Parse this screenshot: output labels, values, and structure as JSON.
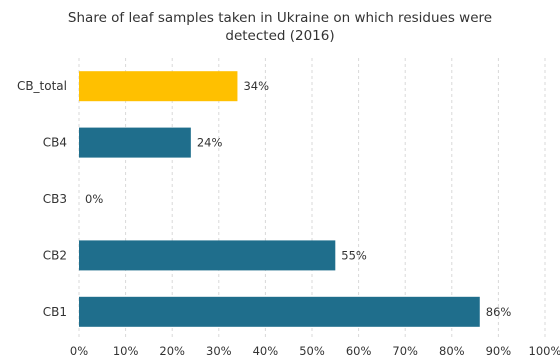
{
  "chart_data": {
    "type": "bar",
    "orientation": "horizontal",
    "title": "Share of leaf samples taken in Ukraine on which residues were detected (2016)",
    "title_lines": [
      "Share of leaf samples taken in Ukraine on which residues were",
      "detected (2016)"
    ],
    "categories": [
      "CB_total",
      "CB4",
      "CB3",
      "CB2",
      "CB1"
    ],
    "values": [
      34,
      24,
      0,
      55,
      86
    ],
    "data_labels": [
      "34%",
      "24%",
      "0%",
      "55%",
      "86%"
    ],
    "bar_colors": [
      "#FFC000",
      "#1F6E8C",
      "#1F6E8C",
      "#1F6E8C",
      "#1F6E8C"
    ],
    "xlim": [
      0,
      100
    ],
    "x_ticks": [
      0,
      10,
      20,
      30,
      40,
      50,
      60,
      70,
      80,
      90,
      100
    ],
    "x_tick_labels": [
      "0%",
      "10%",
      "20%",
      "30%",
      "40%",
      "50%",
      "60%",
      "70%",
      "80%",
      "90%",
      "100%"
    ],
    "grid": "vertical-dashed",
    "legend": "none"
  }
}
